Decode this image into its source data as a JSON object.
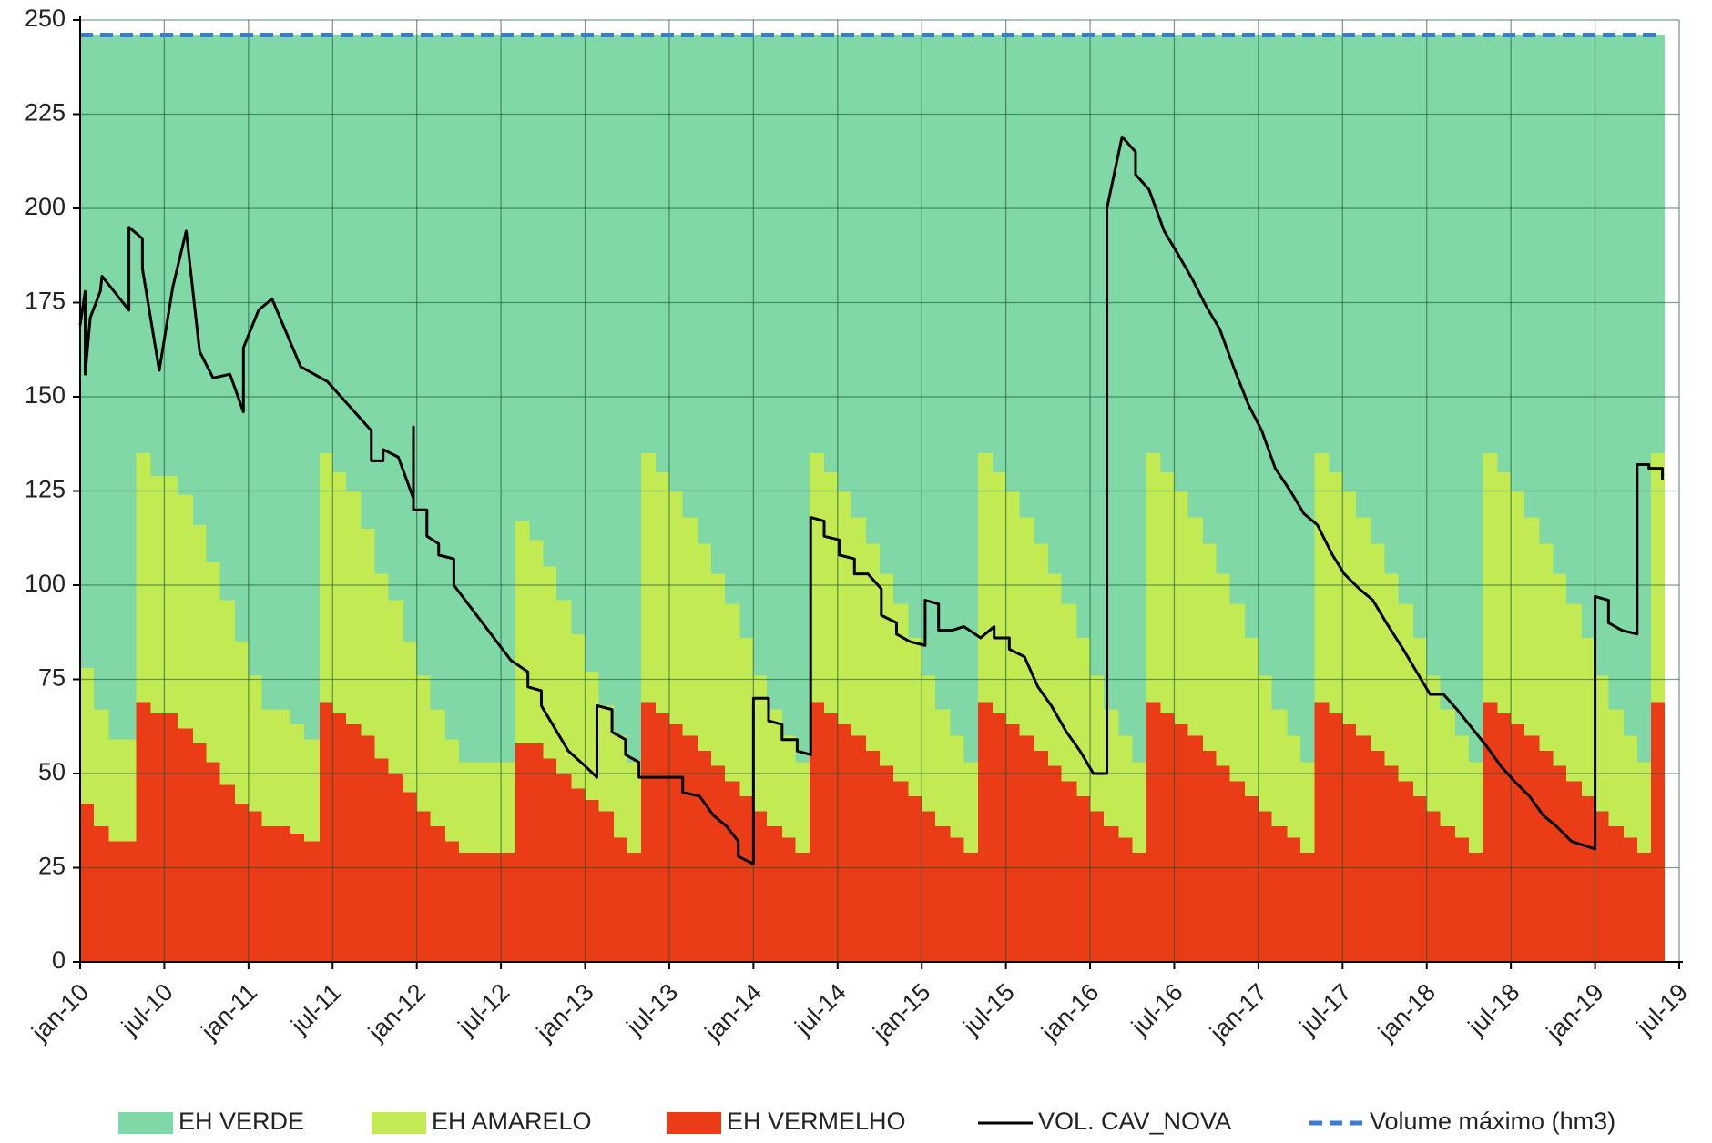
{
  "chart_data": {
    "type": "area",
    "stacked": true,
    "grid": true,
    "legend": "bottom",
    "xlim": [
      2010,
      2019.5
    ],
    "xticks": [
      {
        "value": 2010,
        "label": "jan-10"
      },
      {
        "value": 2010.5,
        "label": "jul-10"
      },
      {
        "value": 2011,
        "label": "jan-11"
      },
      {
        "value": 2011.5,
        "label": "jul-11"
      },
      {
        "value": 2012,
        "label": "jan-12"
      },
      {
        "value": 2012.5,
        "label": "jul-12"
      },
      {
        "value": 2013,
        "label": "jan-13"
      },
      {
        "value": 2013.5,
        "label": "jul-13"
      },
      {
        "value": 2014,
        "label": "jan-14"
      },
      {
        "value": 2014.5,
        "label": "jul-14"
      },
      {
        "value": 2015,
        "label": "jan-15"
      },
      {
        "value": 2015.5,
        "label": "jul-15"
      },
      {
        "value": 2016,
        "label": "jan-16"
      },
      {
        "value": 2016.5,
        "label": "jul-16"
      },
      {
        "value": 2017,
        "label": "jan-17"
      },
      {
        "value": 2017.5,
        "label": "jul-17"
      },
      {
        "value": 2018,
        "label": "jan-18"
      },
      {
        "value": 2018.5,
        "label": "jul-18"
      },
      {
        "value": 2019,
        "label": "jan-19"
      },
      {
        "value": 2019.5,
        "label": "jul-19"
      }
    ],
    "ylim": [
      0,
      250
    ],
    "yticks": [
      0,
      25,
      50,
      75,
      100,
      125,
      150,
      175,
      200,
      225,
      250
    ],
    "x": [
      2010,
      2010.08,
      2010.17,
      2010.25,
      2010.33,
      2010.42,
      2010.5,
      2010.58,
      2010.67,
      2010.75,
      2010.83,
      2010.92,
      2011,
      2011.08,
      2011.17,
      2011.25,
      2011.33,
      2011.42,
      2011.5,
      2011.58,
      2011.67,
      2011.75,
      2011.83,
      2011.92,
      2012,
      2012.08,
      2012.17,
      2012.25,
      2012.33,
      2012.42,
      2012.5,
      2012.58,
      2012.67,
      2012.75,
      2012.83,
      2012.92,
      2013,
      2013.08,
      2013.17,
      2013.25,
      2013.33,
      2013.42,
      2013.5,
      2013.58,
      2013.67,
      2013.75,
      2013.83,
      2013.92,
      2014,
      2014.08,
      2014.17,
      2014.25,
      2014.33,
      2014.42,
      2014.5,
      2014.58,
      2014.67,
      2014.75,
      2014.83,
      2014.92,
      2015,
      2015.08,
      2015.17,
      2015.25,
      2015.33,
      2015.42,
      2015.5,
      2015.58,
      2015.67,
      2015.75,
      2015.83,
      2015.92,
      2016,
      2016.08,
      2016.17,
      2016.25,
      2016.33,
      2016.42,
      2016.5,
      2016.58,
      2016.67,
      2016.75,
      2016.83,
      2016.92,
      2017,
      2017.08,
      2017.17,
      2017.25,
      2017.33,
      2017.42,
      2017.5,
      2017.58,
      2017.67,
      2017.75,
      2017.83,
      2017.92,
      2018,
      2018.08,
      2018.17,
      2018.25,
      2018.33,
      2018.42,
      2018.5,
      2018.58,
      2018.67,
      2018.75,
      2018.83,
      2018.92,
      2019,
      2019.08,
      2019.17,
      2019.25,
      2019.33
    ],
    "series": [
      {
        "name": "EH VERDE",
        "type": "area",
        "color": "#7fd8a6",
        "values": [
          168,
          179,
          187,
          187,
          111,
          117,
          117,
          122,
          130,
          140,
          150,
          161,
          170,
          179,
          179,
          183,
          187,
          111,
          116,
          121,
          131,
          143,
          150,
          161,
          170,
          179,
          187,
          193,
          193,
          193,
          193,
          129,
          134,
          141,
          150,
          159,
          169,
          178,
          186,
          193,
          111,
          116,
          121,
          128,
          135,
          143,
          151,
          160,
          170,
          179,
          186,
          193,
          111,
          116,
          121,
          128,
          135,
          143,
          151,
          160,
          170,
          179,
          186,
          193,
          111,
          116,
          121,
          128,
          135,
          143,
          151,
          160,
          170,
          179,
          186,
          193,
          111,
          116,
          121,
          128,
          135,
          143,
          151,
          160,
          170,
          179,
          186,
          193,
          111,
          116,
          121,
          128,
          135,
          143,
          151,
          160,
          170,
          179,
          186,
          193,
          111,
          116,
          121,
          128,
          135,
          143,
          151,
          160,
          170,
          179,
          186,
          193,
          111
        ]
      },
      {
        "name": "EH AMARELO",
        "type": "area",
        "color": "#c2ea52",
        "values": [
          36,
          31,
          27,
          27,
          66,
          63,
          63,
          62,
          58,
          53,
          49,
          43,
          36,
          31,
          31,
          29,
          27,
          66,
          64,
          62,
          55,
          49,
          46,
          40,
          36,
          31,
          27,
          24,
          24,
          24,
          24,
          59,
          54,
          51,
          46,
          41,
          34,
          28,
          27,
          24,
          66,
          64,
          62,
          58,
          55,
          51,
          47,
          42,
          36,
          31,
          27,
          24,
          66,
          64,
          62,
          58,
          55,
          51,
          47,
          42,
          36,
          31,
          27,
          24,
          66,
          64,
          62,
          58,
          55,
          51,
          47,
          42,
          36,
          31,
          27,
          24,
          66,
          64,
          62,
          58,
          55,
          51,
          47,
          42,
          36,
          31,
          27,
          24,
          66,
          64,
          62,
          58,
          55,
          51,
          47,
          42,
          36,
          31,
          27,
          24,
          66,
          64,
          62,
          58,
          55,
          51,
          47,
          42,
          36,
          31,
          27,
          24,
          66
        ]
      },
      {
        "name": "EH VERMELHO",
        "type": "area",
        "color": "#ea3c17",
        "values": [
          42,
          36,
          32,
          32,
          69,
          66,
          66,
          62,
          58,
          53,
          47,
          42,
          40,
          36,
          36,
          34,
          32,
          69,
          66,
          63,
          60,
          54,
          50,
          45,
          40,
          36,
          32,
          29,
          29,
          29,
          29,
          58,
          58,
          54,
          50,
          46,
          43,
          40,
          33,
          29,
          69,
          66,
          63,
          60,
          56,
          52,
          48,
          44,
          40,
          36,
          33,
          29,
          69,
          66,
          63,
          60,
          56,
          52,
          48,
          44,
          40,
          36,
          33,
          29,
          69,
          66,
          63,
          60,
          56,
          52,
          48,
          44,
          40,
          36,
          33,
          29,
          69,
          66,
          63,
          60,
          56,
          52,
          48,
          44,
          40,
          36,
          33,
          29,
          69,
          66,
          63,
          60,
          56,
          52,
          48,
          44,
          40,
          36,
          33,
          29,
          69,
          66,
          63,
          60,
          56,
          52,
          48,
          44,
          40,
          36,
          33,
          29,
          69
        ]
      },
      {
        "name": "VOL. CAV_NOVA",
        "type": "line",
        "color": "#000000",
        "x": [
          2010,
          2010.03,
          2010.03,
          2010.06,
          2010.12,
          2010.13,
          2010.29,
          2010.29,
          2010.37,
          2010.37,
          2010.47,
          2010.55,
          2010.63,
          2010.71,
          2010.79,
          2010.89,
          2010.97,
          2010.97,
          2011.06,
          2011.14,
          2011.31,
          2011.47,
          2011.73,
          2011.73,
          2011.8,
          2011.8,
          2011.89,
          2011.98,
          2011.98,
          2011.98,
          2012.06,
          2012.06,
          2012.13,
          2012.13,
          2012.22,
          2012.22,
          2012.56,
          2012.66,
          2012.66,
          2012.74,
          2012.74,
          2012.82,
          2012.9,
          2013,
          2013.07,
          2013.07,
          2013.16,
          2013.16,
          2013.24,
          2013.24,
          2013.32,
          2013.32,
          2013.58,
          2013.58,
          2013.68,
          2013.76,
          2013.84,
          2013.91,
          2013.91,
          2014,
          2014,
          2014.09,
          2014.09,
          2014.17,
          2014.17,
          2014.26,
          2014.26,
          2014.34,
          2014.34,
          2014.42,
          2014.42,
          2014.51,
          2014.51,
          2014.6,
          2014.6,
          2014.68,
          2014.76,
          2014.76,
          2014.85,
          2014.85,
          2014.93,
          2015.02,
          2015.02,
          2015.1,
          2015.1,
          2015.18,
          2015.25,
          2015.35,
          2015.43,
          2015.43,
          2015.52,
          2015.52,
          2015.61,
          2015.69,
          2015.77,
          2015.86,
          2015.94,
          2016.02,
          2016.1,
          2016.1,
          2016.19,
          2016.27,
          2016.27,
          2016.35,
          2016.44,
          2016.52,
          2016.61,
          2016.69,
          2016.77,
          2016.86,
          2016.94,
          2017.02,
          2017.1,
          2017.19,
          2017.27,
          2017.35,
          2017.44,
          2017.51,
          2017.6,
          2017.68,
          2017.76,
          2017.86,
          2017.94,
          2018.02,
          2018.1,
          2018.18,
          2018.27,
          2018.36,
          2018.44,
          2018.52,
          2018.61,
          2018.69,
          2018.77,
          2018.86,
          2019,
          2019,
          2019.08,
          2019.08,
          2019.16,
          2019.25,
          2019.25,
          2019.32,
          2019.32,
          2019.4,
          2019.4
        ],
        "values": [
          169,
          178,
          156,
          171,
          178,
          182,
          173,
          195,
          192,
          184,
          157,
          179,
          194,
          162,
          155,
          156,
          146,
          163,
          173,
          176,
          158,
          154,
          141,
          133,
          133,
          136,
          134,
          123,
          142,
          120,
          120,
          113,
          111,
          108,
          107,
          100,
          80,
          77,
          73,
          72,
          68,
          62,
          56,
          52,
          49,
          68,
          67,
          61,
          59,
          55,
          53,
          49,
          49,
          45,
          44,
          39,
          36,
          32,
          28,
          26,
          70,
          70,
          64,
          63,
          59,
          59,
          56,
          55,
          118,
          117,
          113,
          112,
          108,
          107,
          103,
          103,
          99,
          92,
          90,
          87,
          85,
          84,
          96,
          95,
          88,
          88,
          89,
          86,
          89,
          86,
          86,
          83,
          81,
          73,
          68,
          61,
          56,
          50,
          50,
          200,
          219,
          215,
          209,
          205,
          194,
          188,
          181,
          174,
          168,
          157,
          148,
          141,
          131,
          125,
          119,
          116,
          108,
          103,
          99,
          96,
          90,
          83,
          77,
          71,
          71,
          67,
          62,
          57,
          52,
          48,
          44,
          39,
          36,
          32,
          30,
          97,
          96,
          90,
          88,
          87,
          132,
          132,
          131,
          131,
          128
        ]
      },
      {
        "name": "Volume máximo (hm3)",
        "type": "line",
        "color": "#3b7bd0",
        "dash": true,
        "x": [
          2010,
          2019.4
        ],
        "values": [
          246,
          246
        ]
      }
    ]
  }
}
